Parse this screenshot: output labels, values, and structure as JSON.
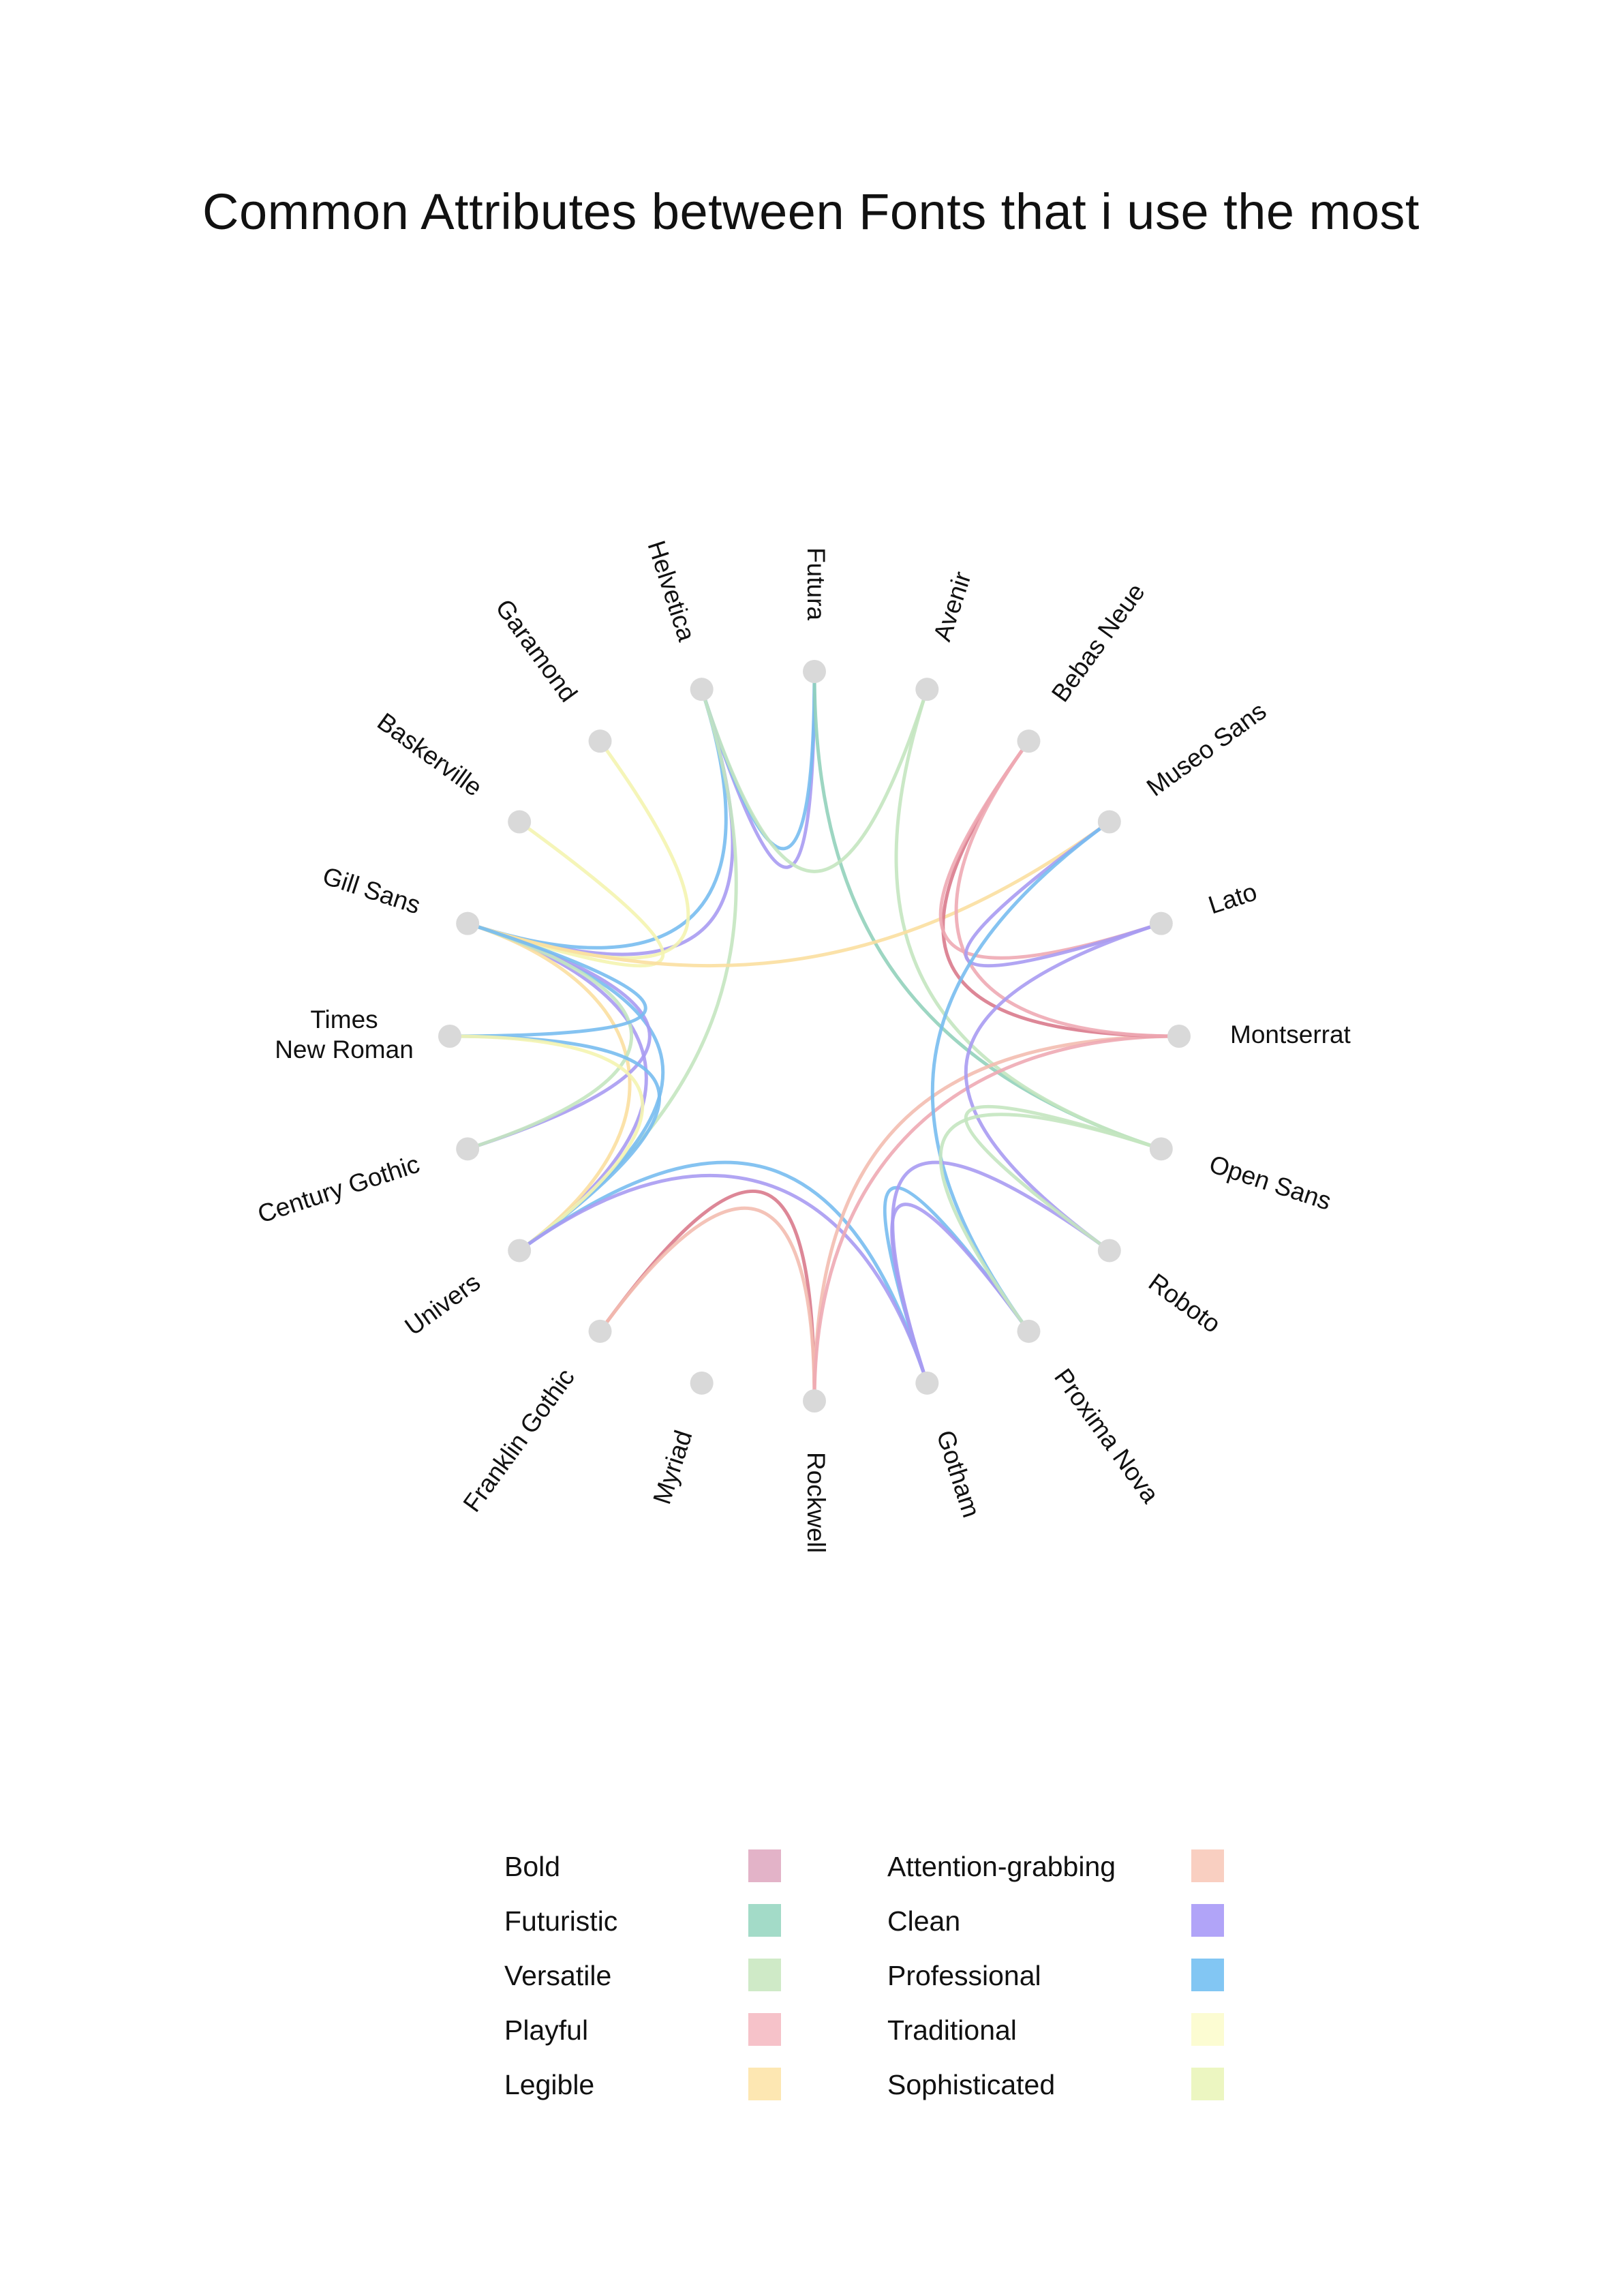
{
  "title": "Common Attributes between Fonts that i use the most",
  "nodes": [
    {
      "name": "Futura",
      "lines": [
        "Futura"
      ]
    },
    {
      "name": "Avenir",
      "lines": [
        "Avenir"
      ]
    },
    {
      "name": "Bebas Neue",
      "lines": [
        "Bebas Neue"
      ]
    },
    {
      "name": "Museo Sans",
      "lines": [
        "Museo Sans"
      ]
    },
    {
      "name": "Lato",
      "lines": [
        "Lato"
      ]
    },
    {
      "name": "Montserrat",
      "lines": [
        "Montserrat"
      ]
    },
    {
      "name": "Open Sans",
      "lines": [
        "Open Sans"
      ]
    },
    {
      "name": "Roboto",
      "lines": [
        "Roboto"
      ]
    },
    {
      "name": "Proxima Nova",
      "lines": [
        "Proxima Nova"
      ]
    },
    {
      "name": "Gotham",
      "lines": [
        "Gotham"
      ]
    },
    {
      "name": "Rockwell",
      "lines": [
        "Rockwell"
      ]
    },
    {
      "name": "Myriad",
      "lines": [
        "Myriad"
      ]
    },
    {
      "name": "Franklin Gothic",
      "lines": [
        "Franklin Gothic"
      ]
    },
    {
      "name": "Univers",
      "lines": [
        "Univers"
      ]
    },
    {
      "name": "Century Gothic",
      "lines": [
        "Century Gothic"
      ]
    },
    {
      "name": "Times New Roman",
      "lines": [
        "Times",
        "New Roman"
      ]
    },
    {
      "name": "Gill Sans",
      "lines": [
        "Gill Sans"
      ]
    },
    {
      "name": "Baskerville",
      "lines": [
        "Baskerville"
      ]
    },
    {
      "name": "Garamond",
      "lines": [
        "Garamond"
      ]
    },
    {
      "name": "Helvetica",
      "lines": [
        "Helvetica"
      ]
    }
  ],
  "attributes": [
    {
      "name": "Bold",
      "color": "#e3b3c8"
    },
    {
      "name": "Attention-grabbing",
      "color": "#f9cfc1"
    },
    {
      "name": "Futuristic",
      "color": "#a3dbc8"
    },
    {
      "name": "Clean",
      "color": "#b1a4f8"
    },
    {
      "name": "Versatile",
      "color": "#cfeac7"
    },
    {
      "name": "Professional",
      "color": "#82c6f3"
    },
    {
      "name": "Playful",
      "color": "#f6c2c9"
    },
    {
      "name": "Traditional",
      "color": "#fcfcd2"
    },
    {
      "name": "Legible",
      "color": "#fde7b2"
    },
    {
      "name": "Sophisticated",
      "color": "#ecf6c1"
    }
  ],
  "links": [
    {
      "source": "Futura",
      "target": "Helvetica",
      "attribute": "Clean",
      "color": "#a99bf2"
    },
    {
      "source": "Futura",
      "target": "Helvetica",
      "attribute": "Professional",
      "color": "#78bdf0"
    },
    {
      "source": "Futura",
      "target": "Open Sans",
      "attribute": "Futuristic",
      "color": "#92d2bb"
    },
    {
      "source": "Avenir",
      "target": "Helvetica",
      "attribute": "Versatile",
      "color": "#c4e5c0"
    },
    {
      "source": "Avenir",
      "target": "Open Sans",
      "attribute": "Versatile",
      "color": "#c4e5c0"
    },
    {
      "source": "Helvetica",
      "target": "Gill Sans",
      "attribute": "Clean",
      "color": "#a99bf2"
    },
    {
      "source": "Helvetica",
      "target": "Gill Sans",
      "attribute": "Professional",
      "color": "#78bdf0"
    },
    {
      "source": "Helvetica",
      "target": "Univers",
      "attribute": "Versatile",
      "color": "#c4e5c0"
    },
    {
      "source": "Garamond",
      "target": "Gill Sans",
      "attribute": "Traditional",
      "color": "#f4f4b0"
    },
    {
      "source": "Baskerville",
      "target": "Gill Sans",
      "attribute": "Traditional",
      "color": "#f4f4b0"
    },
    {
      "source": "Museo Sans",
      "target": "Gill Sans",
      "attribute": "Legible",
      "color": "#fbdfa0"
    },
    {
      "source": "Gill Sans",
      "target": "Univers",
      "attribute": "Professional",
      "color": "#78bdf0"
    },
    {
      "source": "Gill Sans",
      "target": "Univers",
      "attribute": "Clean",
      "color": "#a99bf2"
    },
    {
      "source": "Gill Sans",
      "target": "Univers",
      "attribute": "Legible",
      "color": "#fbdfa0"
    },
    {
      "source": "Gill Sans",
      "target": "Century Gothic",
      "attribute": "Clean",
      "color": "#a99bf2"
    },
    {
      "source": "Gill Sans",
      "target": "Century Gothic",
      "attribute": "Versatile",
      "color": "#c4e5c0"
    },
    {
      "source": "Gill Sans",
      "target": "Times New Roman",
      "attribute": "Professional",
      "color": "#78bdf0"
    },
    {
      "source": "Times New Roman",
      "target": "Univers",
      "attribute": "Professional",
      "color": "#78bdf0"
    },
    {
      "source": "Times New Roman",
      "target": "Univers",
      "attribute": "Traditional",
      "color": "#f4f4b0"
    },
    {
      "source": "Univers",
      "target": "Gotham",
      "attribute": "Professional",
      "color": "#78bdf0"
    },
    {
      "source": "Univers",
      "target": "Gotham",
      "attribute": "Clean",
      "color": "#a99bf2"
    },
    {
      "source": "Franklin Gothic",
      "target": "Rockwell",
      "attribute": "Bold",
      "color": "#d97a8c"
    },
    {
      "source": "Franklin Gothic",
      "target": "Rockwell",
      "attribute": "Attention-grabbing",
      "color": "#f3bdb0"
    },
    {
      "source": "Rockwell",
      "target": "Montserrat",
      "attribute": "Attention-grabbing",
      "color": "#f3bdb0"
    },
    {
      "source": "Rockwell",
      "target": "Montserrat",
      "attribute": "Playful",
      "color": "#eeaab4"
    },
    {
      "source": "Bebas Neue",
      "target": "Montserrat",
      "attribute": "Bold",
      "color": "#d97a8c"
    },
    {
      "source": "Bebas Neue",
      "target": "Montserrat",
      "attribute": "Playful",
      "color": "#eeaab4"
    },
    {
      "source": "Bebas Neue",
      "target": "Lato",
      "attribute": "Playful",
      "color": "#eeaab4"
    },
    {
      "source": "Museo Sans",
      "target": "Lato",
      "attribute": "Clean",
      "color": "#a99bf2"
    },
    {
      "source": "Museo Sans",
      "target": "Proxima Nova",
      "attribute": "Professional",
      "color": "#78bdf0"
    },
    {
      "source": "Lato",
      "target": "Roboto",
      "attribute": "Clean",
      "color": "#a99bf2"
    },
    {
      "source": "Proxima Nova",
      "target": "Gotham",
      "attribute": "Professional",
      "color": "#78bdf0"
    },
    {
      "source": "Proxima Nova",
      "target": "Gotham",
      "attribute": "Clean",
      "color": "#a99bf2"
    },
    {
      "source": "Roboto",
      "target": "Gotham",
      "attribute": "Clean",
      "color": "#a99bf2"
    },
    {
      "source": "Open Sans",
      "target": "Roboto",
      "attribute": "Versatile",
      "color": "#c4e5c0"
    },
    {
      "source": "Open Sans",
      "target": "Proxima Nova",
      "attribute": "Versatile",
      "color": "#c4e5c0"
    }
  ]
}
